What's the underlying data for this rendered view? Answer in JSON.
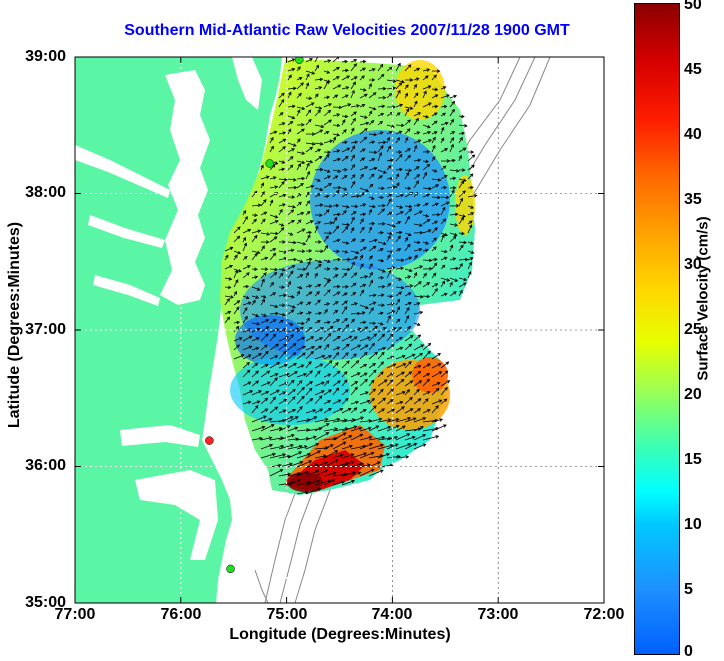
{
  "title": "Southern Mid-Atlantic Raw Velocities 2007/11/28 1900 GMT",
  "axes": {
    "xlabel": "Longitude (Degrees:Minutes)",
    "ylabel": "Latitude (Degrees:Minutes)",
    "xticks": [
      "77:00",
      "76:00",
      "75:00",
      "74:00",
      "73:00",
      "72:00"
    ],
    "yticks": [
      "39:00",
      "38:00",
      "37:00",
      "36:00",
      "35:00"
    ]
  },
  "colorbar": {
    "label": "Surface Velocity (cm/s)",
    "ticks": [
      "50",
      "45",
      "40",
      "35",
      "30",
      "25",
      "20",
      "15",
      "10",
      "5",
      "0"
    ],
    "range": [
      0,
      50
    ]
  },
  "colors": {
    "land": "#5af5a5",
    "water": "#ffffff",
    "title": "#0000ff",
    "station_green": "#22dd22",
    "station_red": "#ff2020"
  },
  "map_data": {
    "lon_range": [
      -77,
      -72
    ],
    "lat_range": [
      35,
      39
    ],
    "stations": [
      {
        "lon": -74.88,
        "lat": 38.98,
        "status": "green"
      },
      {
        "lon": -75.16,
        "lat": 38.22,
        "status": "green"
      },
      {
        "lon": -75.73,
        "lat": 36.19,
        "status": "red"
      },
      {
        "lon": -75.53,
        "lat": 35.25,
        "status": "green"
      }
    ]
  }
}
